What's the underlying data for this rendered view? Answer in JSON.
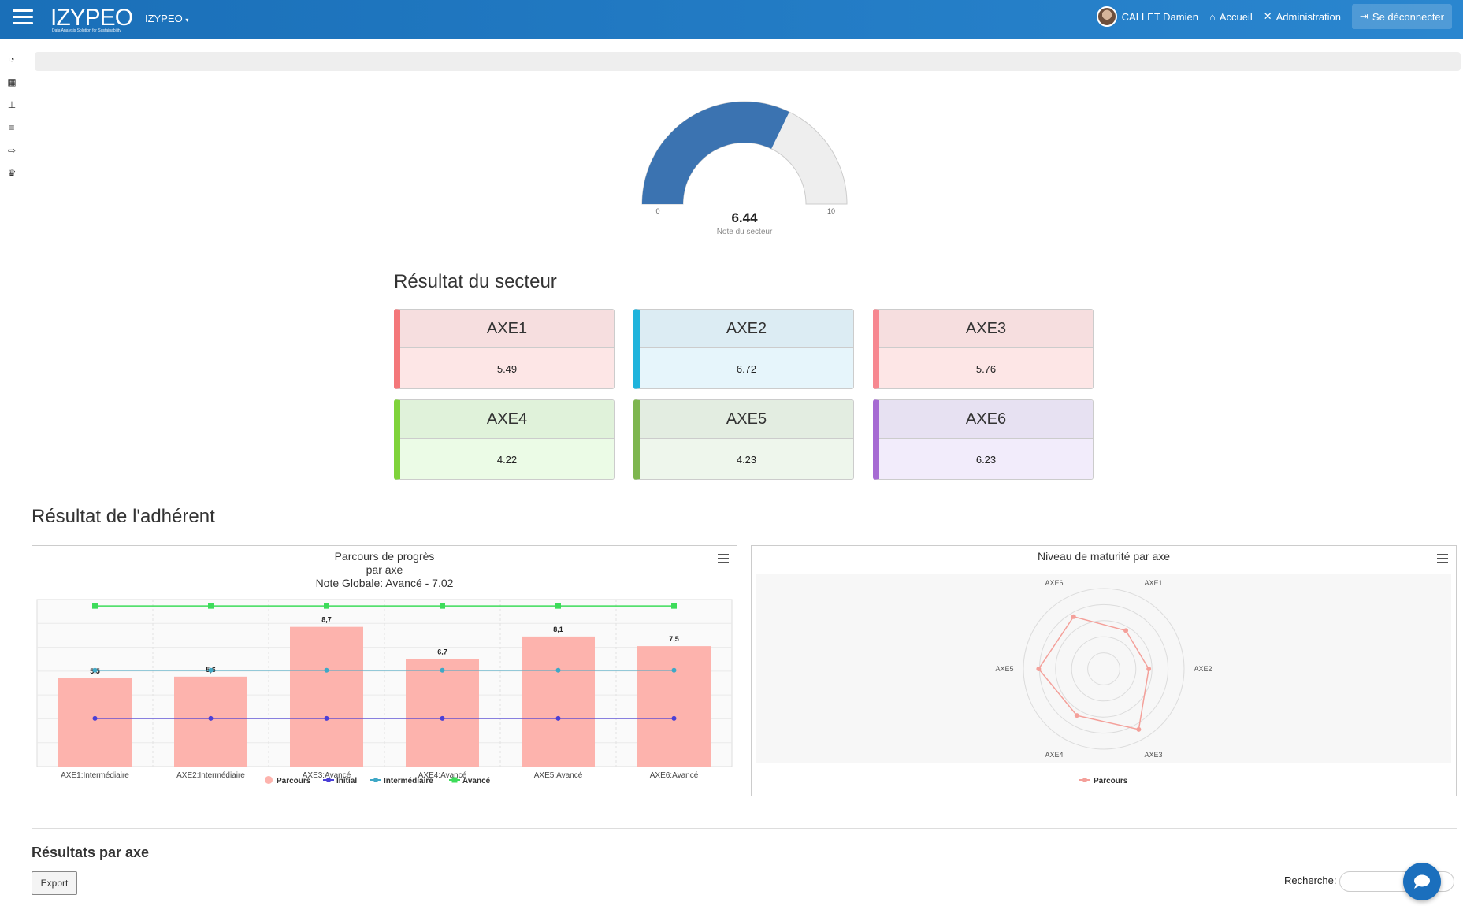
{
  "topbar": {
    "logo_text": "IZYPEO",
    "logo_tagline": "Data Analysis Solution for Sustainability",
    "brand_menu": "IZYPEO",
    "user_name": "CALLET Damien",
    "nav": {
      "home": "Accueil",
      "admin": "Administration",
      "logout": "Se déconnecter"
    },
    "colors": {
      "bar_start": "#1a6fb8",
      "bar_end": "#2a86cf"
    }
  },
  "sidebar": {
    "icons": [
      "dashboard-icon",
      "calculator-icon",
      "sitemap-icon",
      "list-icon",
      "export-icon",
      "trophy-icon"
    ]
  },
  "gauge": {
    "value": "6.44",
    "caption": "Note du secteur",
    "min_label": "0",
    "max_label": "10",
    "fraction": 0.644,
    "fill_color": "#3b73b1",
    "track_color": "#eeeeee"
  },
  "sector": {
    "title": "Résultat du secteur",
    "cards": [
      {
        "name": "AXE1",
        "value": "5.49",
        "accent": "#f4777a",
        "head_bg": "#f6dedf",
        "body_bg": "#fde6e6"
      },
      {
        "name": "AXE2",
        "value": "6.72",
        "accent": "#1fb3dc",
        "head_bg": "#dcecf3",
        "body_bg": "#e6f5fb"
      },
      {
        "name": "AXE3",
        "value": "5.76",
        "accent": "#f78790",
        "head_bg": "#f6dedf",
        "body_bg": "#fde6e6"
      },
      {
        "name": "AXE4",
        "value": "4.22",
        "accent": "#7fd33b",
        "head_bg": "#e0f2da",
        "body_bg": "#ebfbe6"
      },
      {
        "name": "AXE5",
        "value": "4.23",
        "accent": "#7eb64f",
        "head_bg": "#e3ede1",
        "body_bg": "#eef6ec"
      },
      {
        "name": "AXE6",
        "value": "6.23",
        "accent": "#a66ad3",
        "head_bg": "#e7e1f2",
        "body_bg": "#f2ecfb"
      }
    ]
  },
  "member": {
    "title": "Résultat de l'adhérent"
  },
  "chart_data": [
    {
      "type": "bar",
      "title": "Parcours de progrès",
      "subtitle_lines": [
        "par axe",
        "Note Globale: Avancé - 7.02"
      ],
      "categories": [
        "AXE1:Intermédiaire",
        "AXE2:Intermédiaire",
        "AXE3:Avancé",
        "AXE4:Avancé",
        "AXE5:Avancé",
        "AXE6:Avancé"
      ],
      "ylim": [
        0,
        10
      ],
      "grid": true,
      "legend_position": "bottom",
      "series": [
        {
          "name": "Parcours",
          "kind": "bar",
          "color": "#fdb3ad",
          "values": [
            5.5,
            5.6,
            8.7,
            6.7,
            8.1,
            7.5
          ],
          "labels": [
            "5,5",
            "5,6",
            "8,7",
            "6,7",
            "8,1",
            "7,5"
          ]
        },
        {
          "name": "Initial",
          "kind": "line",
          "color": "#4b3fd6",
          "values": [
            3,
            3,
            3,
            3,
            3,
            3
          ]
        },
        {
          "name": "Intermédiaire",
          "kind": "line",
          "color": "#3fa8c6",
          "values": [
            6,
            6,
            6,
            6,
            6,
            6
          ]
        },
        {
          "name": "Avancé",
          "kind": "line",
          "color": "#3ddc5a",
          "values": [
            10,
            10,
            10,
            10,
            10,
            10
          ]
        }
      ]
    },
    {
      "type": "radar",
      "title": "Niveau de maturité par axe",
      "axes": [
        "AXE1",
        "AXE2",
        "AXE3",
        "AXE4",
        "AXE5",
        "AXE6"
      ],
      "rmax": 10,
      "legend_position": "bottom",
      "series": [
        {
          "name": "Parcours",
          "color": "#f4a09a",
          "values": [
            5.5,
            5.6,
            8.7,
            6.7,
            8.1,
            7.5
          ]
        }
      ]
    }
  ],
  "results": {
    "title": "Résultats par axe",
    "export_label": "Export",
    "search_label": "Recherche:",
    "search_placeholder": ""
  }
}
